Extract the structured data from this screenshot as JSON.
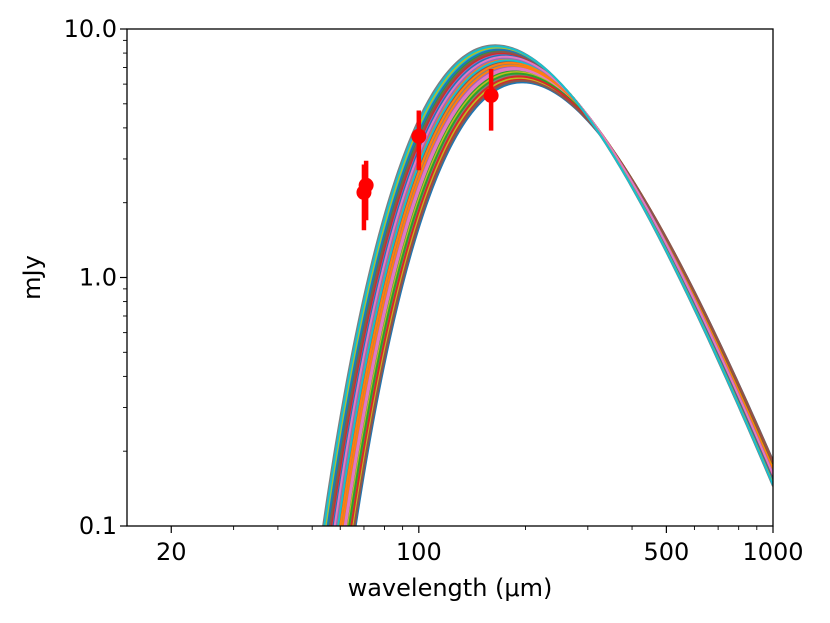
{
  "chart_data": {
    "type": "line",
    "title": "",
    "xlabel": "wavelength (μm)",
    "ylabel": "mJy",
    "xscale": "log",
    "yscale": "log",
    "xlim": [
      15,
      1000
    ],
    "ylim": [
      0.1,
      10.0
    ],
    "x_ticks": [
      {
        "value": 20,
        "label": "20"
      },
      {
        "value": 100,
        "label": "100"
      },
      {
        "value": 500,
        "label": "500"
      },
      {
        "value": 1000,
        "label": "1000"
      }
    ],
    "y_ticks": [
      {
        "value": 0.1,
        "label": "0.1"
      },
      {
        "value": 1.0,
        "label": "1.0"
      },
      {
        "value": 10.0,
        "label": "10.0"
      }
    ],
    "grid": false,
    "model_curves": {
      "description_free": true,
      "count": 30,
      "x_range": [
        15,
        1000
      ],
      "peak_flux_range": [
        6.1,
        8.6
      ],
      "peak_wavelength_range": [
        172,
        205
      ],
      "colors": [
        "#1f77b4",
        "#ff7f0e",
        "#2ca02c",
        "#d62728",
        "#9467bd",
        "#8c564b",
        "#e377c2",
        "#7f7f7f",
        "#bcbd22",
        "#17becf"
      ]
    },
    "observations": {
      "color": "#ff0000",
      "points": [
        {
          "x": 70,
          "y": 2.2,
          "yerr_low": 0.65,
          "yerr_high": 0.65
        },
        {
          "x": 71,
          "y": 2.35,
          "yerr_low": 0.65,
          "yerr_high": 0.6
        },
        {
          "x": 100,
          "y": 3.7,
          "yerr_low": 1.0,
          "yerr_high": 1.0
        },
        {
          "x": 160,
          "y": 5.4,
          "yerr_low": 1.5,
          "yerr_high": 1.5
        }
      ]
    }
  }
}
